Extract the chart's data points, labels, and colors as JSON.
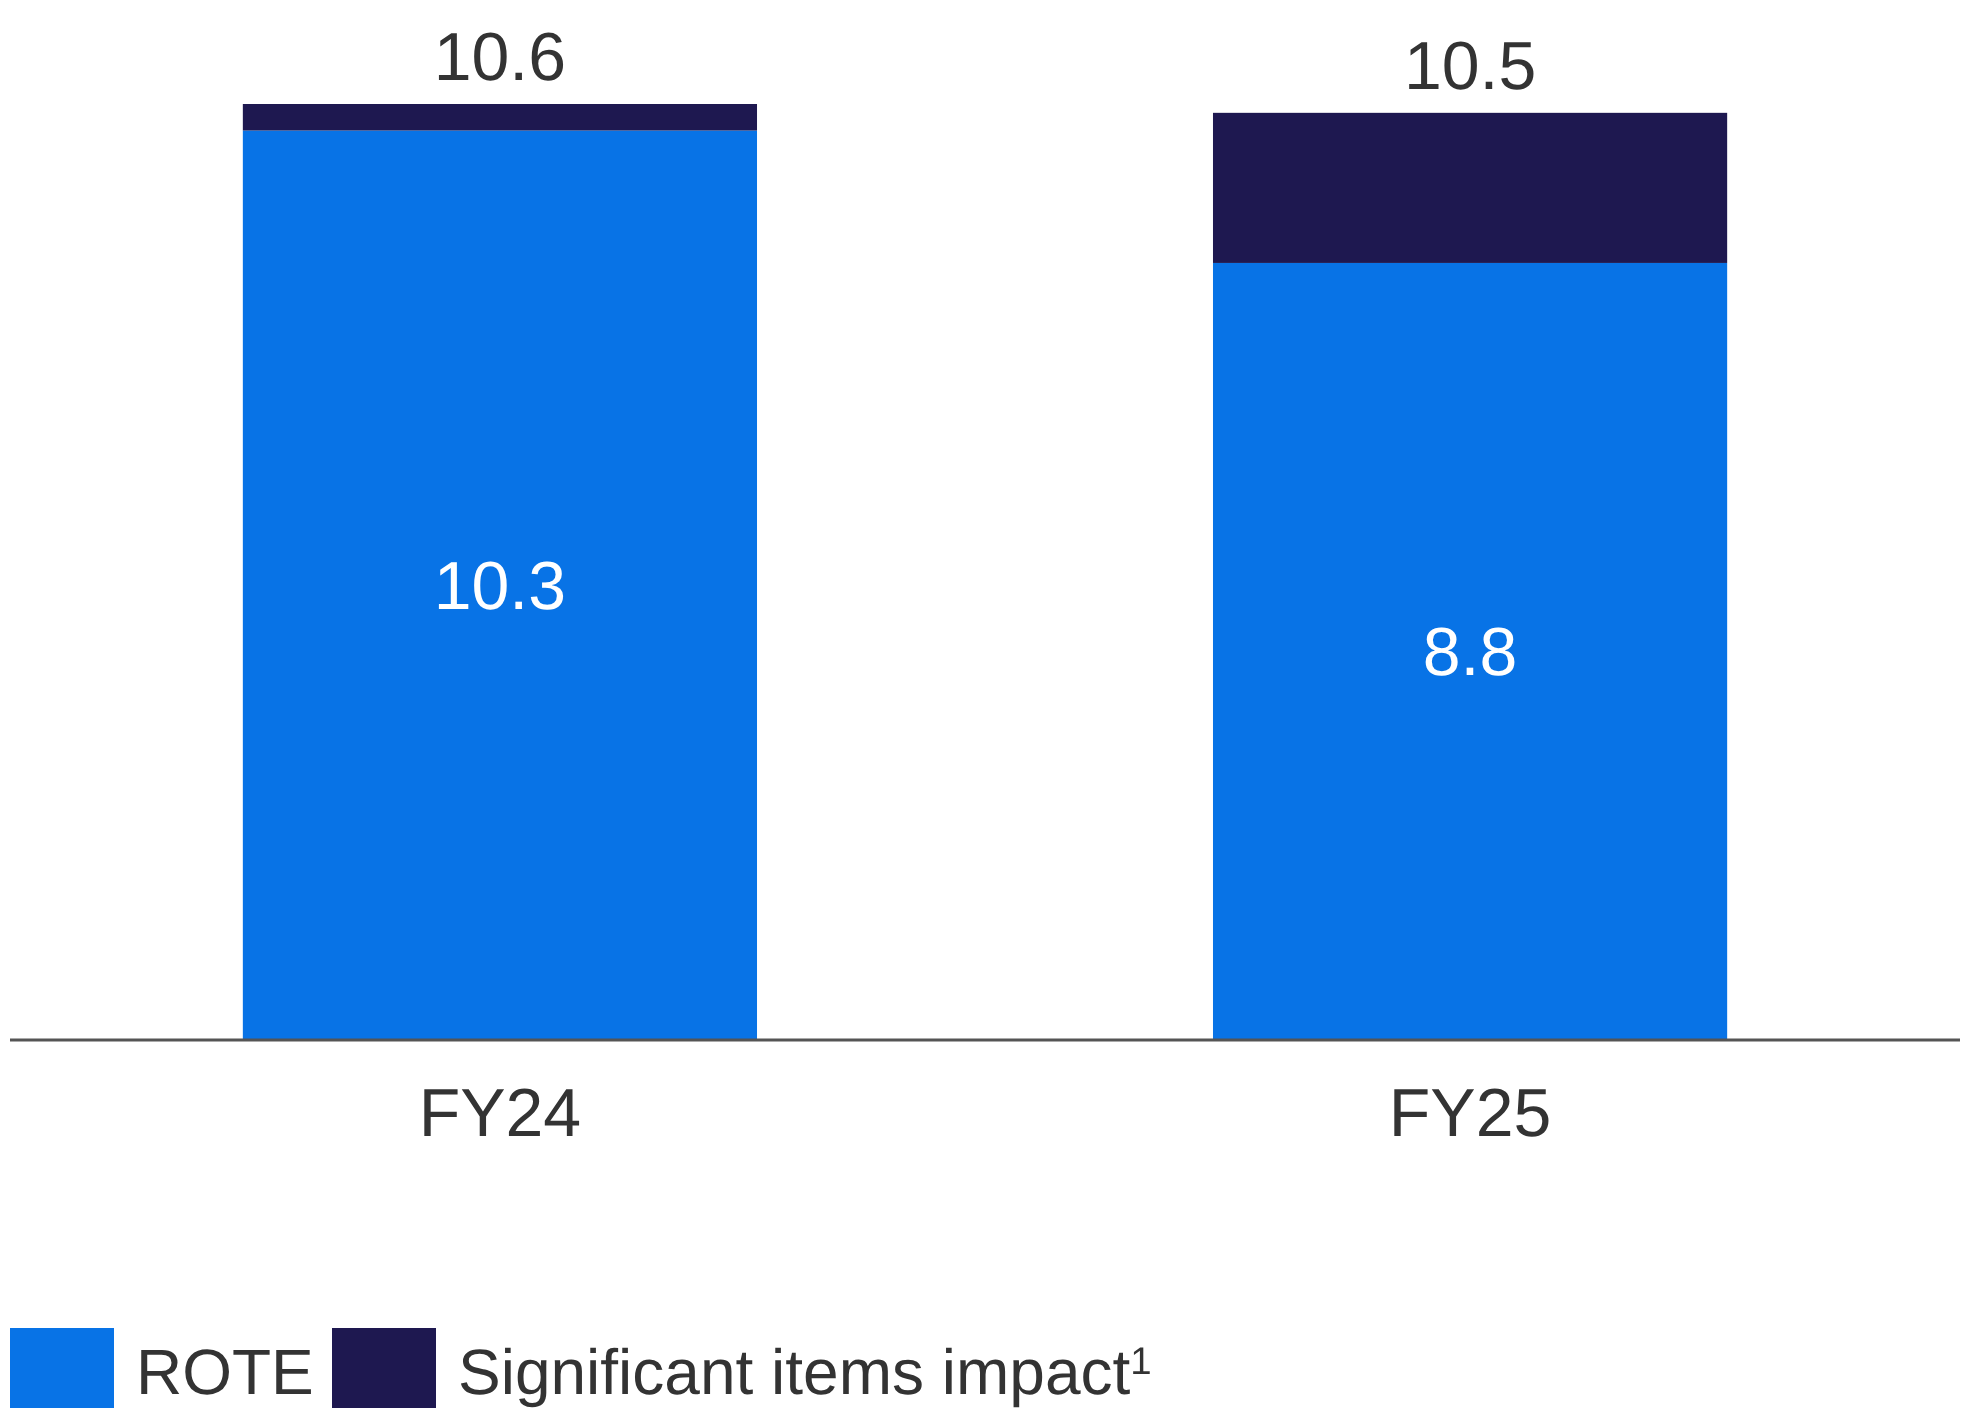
{
  "chart_data": {
    "type": "bar",
    "stacked": true,
    "categories": [
      "FY24",
      "FY25"
    ],
    "series": [
      {
        "name": "ROTE",
        "color": "#0873e6",
        "values": [
          10.3,
          8.8
        ],
        "value_labels": [
          "10.3",
          "8.8"
        ]
      },
      {
        "name": "Significant items impact$^{1}$",
        "color": "#1e1850",
        "values": [
          0.3,
          1.7
        ]
      }
    ],
    "totals": [
      "10.6",
      "10.5"
    ],
    "legend": "bottom left"
  }
}
